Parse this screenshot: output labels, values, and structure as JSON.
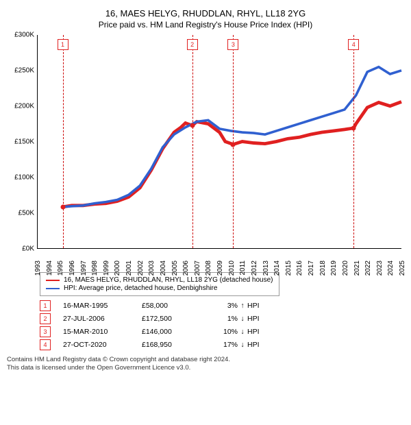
{
  "title": "16, MAES HELYG, RHUDDLAN, RHYL, LL18 2YG",
  "subtitle": "Price paid vs. HM Land Registry's House Price Index (HPI)",
  "chart": {
    "type": "line",
    "ylim": [
      0,
      300000
    ],
    "ytick_step": 50000,
    "y_prefix": "£",
    "y_suffix": "K",
    "xlim": [
      1993,
      2025
    ],
    "xtick_step": 1,
    "background_color": "#ffffff",
    "axis_color": "#000000",
    "marker_line_color": "#cc0000",
    "marker_line_dash": "4,3",
    "series": [
      {
        "name": "property",
        "label": "16, MAES HELYG, RHUDDLAN, RHYL, LL18 2YG (detached house)",
        "color": "#e02020",
        "line_width": 1.6,
        "points": [
          [
            1995.2,
            58000
          ],
          [
            1996,
            60000
          ],
          [
            1997,
            60000
          ],
          [
            1998,
            62000
          ],
          [
            1999,
            63000
          ],
          [
            2000,
            66000
          ],
          [
            2001,
            72000
          ],
          [
            2002,
            85000
          ],
          [
            2003,
            110000
          ],
          [
            2004,
            140000
          ],
          [
            2005,
            163000
          ],
          [
            2005.6,
            170000
          ],
          [
            2006,
            176000
          ],
          [
            2006.6,
            172500
          ],
          [
            2007,
            178000
          ],
          [
            2008,
            175000
          ],
          [
            2009,
            163000
          ],
          [
            2009.5,
            150000
          ],
          [
            2010.2,
            146000
          ],
          [
            2011,
            150000
          ],
          [
            2012,
            148000
          ],
          [
            2013,
            147000
          ],
          [
            2014,
            150000
          ],
          [
            2015,
            154000
          ],
          [
            2016,
            156000
          ],
          [
            2017,
            160000
          ],
          [
            2018,
            163000
          ],
          [
            2019,
            165000
          ],
          [
            2020,
            167000
          ],
          [
            2020.8,
            168950
          ],
          [
            2021,
            175000
          ],
          [
            2022,
            198000
          ],
          [
            2023,
            205000
          ],
          [
            2024,
            200000
          ],
          [
            2025,
            206000
          ]
        ]
      },
      {
        "name": "hpi",
        "label": "HPI: Average price, detached house, Denbighshire",
        "color": "#3060d0",
        "line_width": 1.2,
        "points": [
          [
            1995.2,
            58000
          ],
          [
            1996,
            59000
          ],
          [
            1997,
            60000
          ],
          [
            1998,
            63000
          ],
          [
            1999,
            65000
          ],
          [
            2000,
            68000
          ],
          [
            2001,
            75000
          ],
          [
            2002,
            88000
          ],
          [
            2003,
            112000
          ],
          [
            2004,
            142000
          ],
          [
            2005,
            160000
          ],
          [
            2006,
            170000
          ],
          [
            2007,
            178000
          ],
          [
            2008,
            180000
          ],
          [
            2009,
            168000
          ],
          [
            2010,
            165000
          ],
          [
            2011,
            163000
          ],
          [
            2012,
            162000
          ],
          [
            2013,
            160000
          ],
          [
            2014,
            165000
          ],
          [
            2015,
            170000
          ],
          [
            2016,
            175000
          ],
          [
            2017,
            180000
          ],
          [
            2018,
            185000
          ],
          [
            2019,
            190000
          ],
          [
            2020,
            195000
          ],
          [
            2021,
            215000
          ],
          [
            2022,
            248000
          ],
          [
            2023,
            255000
          ],
          [
            2024,
            245000
          ],
          [
            2025,
            250000
          ]
        ]
      }
    ],
    "markers": [
      {
        "n": "1",
        "year": 1995.2,
        "dot_y": 58000
      },
      {
        "n": "2",
        "year": 2006.6,
        "dot_y": 172500
      },
      {
        "n": "3",
        "year": 2010.2,
        "dot_y": 146000
      },
      {
        "n": "4",
        "year": 2020.8,
        "dot_y": 168950
      }
    ],
    "dot_color": "#e02020",
    "dot_radius": 3.5
  },
  "transactions": [
    {
      "n": "1",
      "date": "16-MAR-1995",
      "price": "£58,000",
      "pct": "3%",
      "arrow": "↑",
      "suffix": "HPI"
    },
    {
      "n": "2",
      "date": "27-JUL-2006",
      "price": "£172,500",
      "pct": "1%",
      "arrow": "↓",
      "suffix": "HPI"
    },
    {
      "n": "3",
      "date": "15-MAR-2010",
      "price": "£146,000",
      "pct": "10%",
      "arrow": "↓",
      "suffix": "HPI"
    },
    {
      "n": "4",
      "date": "27-OCT-2020",
      "price": "£168,950",
      "pct": "17%",
      "arrow": "↓",
      "suffix": "HPI"
    }
  ],
  "badge_border_color": "#e02020",
  "footer_line1": "Contains HM Land Registry data © Crown copyright and database right 2024.",
  "footer_line2": "This data is licensed under the Open Government Licence v3.0."
}
